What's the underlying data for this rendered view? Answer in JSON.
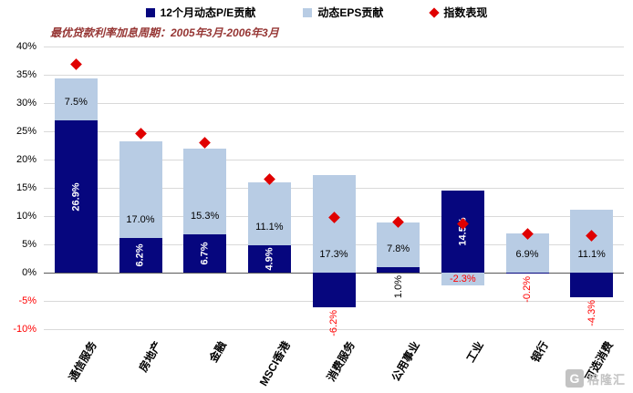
{
  "chart_data": {
    "type": "bar",
    "stacked": true,
    "subtitle": "最优贷款利率加息周期：2005年3月-2006年3月",
    "categories": [
      "通信服务",
      "房地产",
      "金融",
      "MSCI香港",
      "消费服务",
      "公用事业",
      "工业",
      "银行",
      "可选消费"
    ],
    "series": [
      {
        "name": "12个月动态P/E贡献",
        "type": "bar",
        "color": "#06067E",
        "values": [
          26.9,
          6.2,
          6.7,
          4.9,
          -6.2,
          1.0,
          14.5,
          -0.2,
          -4.3
        ]
      },
      {
        "name": "动态EPS贡献",
        "type": "bar",
        "color": "#B8CCE4",
        "values": [
          7.5,
          17.0,
          15.3,
          11.1,
          17.3,
          7.8,
          -2.3,
          6.9,
          11.1
        ]
      },
      {
        "name": "指数表现",
        "type": "scatter",
        "marker": "diamond",
        "color": "#E00000",
        "values": [
          36.8,
          24.6,
          23.0,
          16.5,
          9.8,
          9.0,
          8.7,
          6.8,
          6.5
        ]
      }
    ],
    "ylim": [
      -10,
      40
    ],
    "yticks": [
      40,
      35,
      30,
      25,
      20,
      15,
      10,
      5,
      0,
      -5,
      -10
    ],
    "ytick_format": "{v}%",
    "value_label_format": "{v}%",
    "negative_label_color": "#FF0000",
    "grid": true,
    "legend_position": "top"
  },
  "watermark": {
    "icon": "G",
    "text": "格隆汇"
  }
}
